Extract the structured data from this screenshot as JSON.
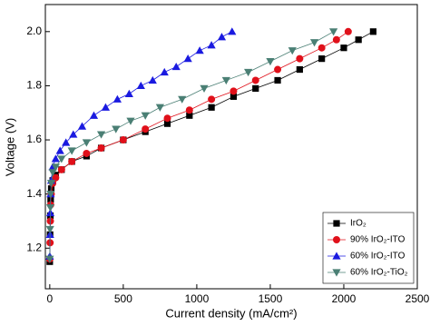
{
  "chart_data": {
    "type": "line",
    "xlabel": "Current density  (mA/cm²)",
    "ylabel": "Voltage  (V)",
    "xlim": [
      -30,
      2500
    ],
    "ylim": [
      1.05,
      2.1
    ],
    "xticks": [
      0,
      500,
      1000,
      1500,
      2000,
      2500
    ],
    "yticks": [
      1.2,
      1.4,
      1.6,
      1.8,
      {
        "value": 2,
        "label": "2.0"
      }
    ],
    "legend": "lower right",
    "series": [
      {
        "name": "IrO₂",
        "color": "#000000",
        "marker": "square",
        "x": [
          0,
          2,
          4,
          6,
          10,
          20,
          40,
          80,
          150,
          250,
          350,
          500,
          650,
          800,
          950,
          1100,
          1250,
          1400,
          1550,
          1700,
          1850,
          2000,
          2100,
          2200
        ],
        "values": [
          1.15,
          1.25,
          1.32,
          1.38,
          1.42,
          1.45,
          1.47,
          1.49,
          1.52,
          1.54,
          1.57,
          1.6,
          1.63,
          1.66,
          1.69,
          1.72,
          1.76,
          1.79,
          1.82,
          1.86,
          1.9,
          1.94,
          1.97,
          2.0
        ]
      },
      {
        "name": "90% IrO₂-ITO",
        "color": "#e0101a",
        "marker": "circle",
        "x": [
          0,
          2,
          4,
          6,
          10,
          20,
          40,
          80,
          150,
          250,
          350,
          500,
          650,
          800,
          950,
          1100,
          1250,
          1400,
          1550,
          1700,
          1850,
          1950,
          2030
        ],
        "values": [
          1.16,
          1.22,
          1.3,
          1.36,
          1.4,
          1.44,
          1.46,
          1.49,
          1.52,
          1.55,
          1.57,
          1.6,
          1.64,
          1.68,
          1.71,
          1.75,
          1.78,
          1.82,
          1.86,
          1.9,
          1.94,
          1.97,
          2.0
        ]
      },
      {
        "name": "60% IrO₂-ITO",
        "color": "#1a1ae0",
        "marker": "triangle-up",
        "x": [
          0,
          2,
          4,
          6,
          10,
          20,
          40,
          70,
          110,
          160,
          220,
          300,
          380,
          460,
          540,
          620,
          700,
          780,
          860,
          940,
          1020,
          1100,
          1170,
          1240
        ],
        "values": [
          1.17,
          1.25,
          1.33,
          1.4,
          1.45,
          1.5,
          1.53,
          1.56,
          1.59,
          1.62,
          1.65,
          1.69,
          1.72,
          1.75,
          1.77,
          1.8,
          1.82,
          1.85,
          1.87,
          1.9,
          1.93,
          1.95,
          1.98,
          2.0
        ]
      },
      {
        "name": "60% IrO₂-TiO₂",
        "color": "#4a7f74",
        "marker": "triangle-down",
        "x": [
          0,
          2,
          4,
          6,
          10,
          20,
          40,
          80,
          150,
          250,
          350,
          450,
          550,
          650,
          750,
          900,
          1050,
          1200,
          1350,
          1500,
          1650,
          1800,
          1930
        ],
        "values": [
          1.16,
          1.27,
          1.35,
          1.4,
          1.44,
          1.48,
          1.5,
          1.53,
          1.56,
          1.59,
          1.62,
          1.64,
          1.67,
          1.69,
          1.72,
          1.75,
          1.79,
          1.82,
          1.85,
          1.89,
          1.93,
          1.96,
          2.0
        ]
      }
    ]
  }
}
